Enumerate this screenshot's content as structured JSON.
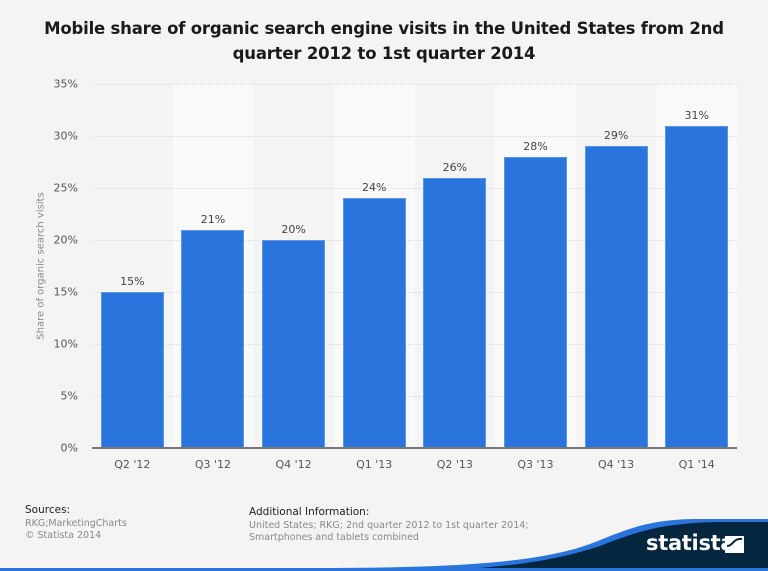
{
  "header": {
    "title_line1": "Mobile share of organic search engine visits in the United States from 2nd",
    "title_line2": "quarter 2012 to 1st quarter 2014"
  },
  "axes": {
    "ylabel": "Share of organic search visits",
    "yticks": [
      "0%",
      "5%",
      "10%",
      "15%",
      "20%",
      "25%",
      "30%",
      "35%"
    ]
  },
  "bars": [
    {
      "label": "Q2 '12",
      "value": 15,
      "value_label": "15%"
    },
    {
      "label": "Q3 '12",
      "value": 21,
      "value_label": "21%"
    },
    {
      "label": "Q4 '12",
      "value": 20,
      "value_label": "20%"
    },
    {
      "label": "Q1 '13",
      "value": 24,
      "value_label": "24%"
    },
    {
      "label": "Q2 '13",
      "value": 26,
      "value_label": "26%"
    },
    {
      "label": "Q3 '13",
      "value": 28,
      "value_label": "28%"
    },
    {
      "label": "Q4 '13",
      "value": 29,
      "value_label": "29%"
    },
    {
      "label": "Q1 '14",
      "value": 31,
      "value_label": "31%"
    }
  ],
  "footer": {
    "sources_heading": "Sources:",
    "sources_line1": "RKG;MarketingCharts",
    "sources_line2": "© Statista 2014",
    "additional_heading": "Additional Information:",
    "additional_text": "United States; RKG; 2nd quarter 2012 to 1st quarter 2014; Smartphones and tablets combined",
    "brand": "statista"
  },
  "colors": {
    "bar": "#2a75dd",
    "background": "#f4f4f4",
    "band": "#f9f9f9",
    "footer_dark": "#04263f",
    "footer_accent": "#2a75dd"
  },
  "chart_data": {
    "type": "bar",
    "title": "Mobile share of organic search engine visits in the United States from 2nd quarter 2012 to 1st quarter 2014",
    "categories": [
      "Q2 '12",
      "Q3 '12",
      "Q4 '12",
      "Q1 '13",
      "Q2 '13",
      "Q3 '13",
      "Q4 '13",
      "Q1 '14"
    ],
    "values": [
      15,
      21,
      20,
      24,
      26,
      28,
      29,
      31
    ],
    "value_labels": [
      "15%",
      "21%",
      "20%",
      "24%",
      "26%",
      "28%",
      "29%",
      "31%"
    ],
    "xlabel": "",
    "ylabel": "Share of organic search visits",
    "ylim": [
      0,
      35
    ],
    "yticks": [
      0,
      5,
      10,
      15,
      20,
      25,
      30,
      35
    ],
    "ytick_format": "percent",
    "grid": true,
    "legend": null,
    "sources": "RKG;MarketingCharts",
    "copyright": "© Statista 2014",
    "additional_information": "United States; RKG; 2nd quarter 2012 to 1st quarter 2014; Smartphones and tablets combined"
  }
}
